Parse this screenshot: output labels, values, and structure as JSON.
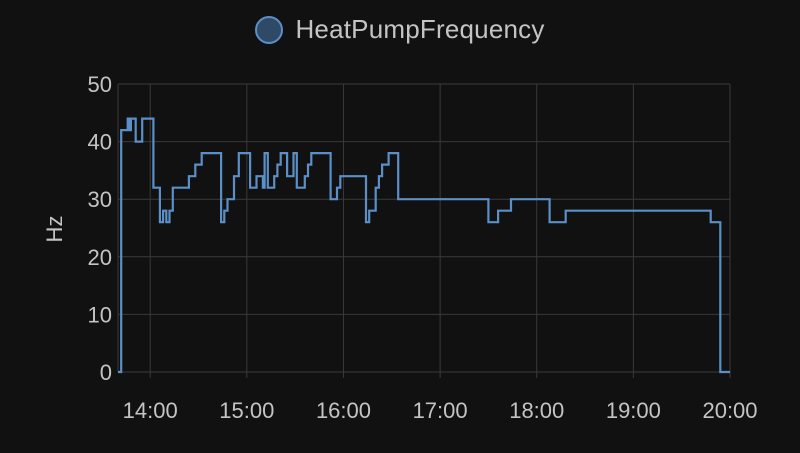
{
  "chart_data": {
    "type": "line",
    "step": true,
    "title": "",
    "xlabel": "",
    "ylabel": "Hz",
    "ylim": [
      0,
      50
    ],
    "yticks": [
      0,
      10,
      20,
      30,
      40,
      50
    ],
    "xlim": [
      "13:40",
      "20:00"
    ],
    "xticks": [
      "14:00",
      "15:00",
      "16:00",
      "17:00",
      "18:00",
      "19:00",
      "20:00"
    ],
    "grid": true,
    "legend_position": "top-center",
    "series": [
      {
        "name": "HeatPumpFrequency",
        "color": "#5b8fc7",
        "fill": "#2e4a66",
        "points": [
          [
            "13:40",
            0
          ],
          [
            "13:42",
            42
          ],
          [
            "13:46",
            44
          ],
          [
            "13:47",
            42
          ],
          [
            "13:48",
            44
          ],
          [
            "13:51",
            40
          ],
          [
            "13:55",
            44
          ],
          [
            "14:02",
            32
          ],
          [
            "14:06",
            26
          ],
          [
            "14:08",
            28
          ],
          [
            "14:10",
            26
          ],
          [
            "14:12",
            28
          ],
          [
            "14:14",
            32
          ],
          [
            "14:16",
            32
          ],
          [
            "14:24",
            34
          ],
          [
            "14:28",
            36
          ],
          [
            "14:32",
            38
          ],
          [
            "14:44",
            26
          ],
          [
            "14:46",
            28
          ],
          [
            "14:48",
            30
          ],
          [
            "14:52",
            34
          ],
          [
            "14:55",
            38
          ],
          [
            "15:02",
            32
          ],
          [
            "15:06",
            34
          ],
          [
            "15:10",
            32
          ],
          [
            "15:11",
            38
          ],
          [
            "15:13",
            32
          ],
          [
            "15:17",
            34
          ],
          [
            "15:19",
            36
          ],
          [
            "15:21",
            38
          ],
          [
            "15:25",
            34
          ],
          [
            "15:29",
            38
          ],
          [
            "15:31",
            32
          ],
          [
            "15:33",
            32
          ],
          [
            "15:36",
            34
          ],
          [
            "15:38",
            36
          ],
          [
            "15:40",
            38
          ],
          [
            "15:42",
            38
          ],
          [
            "15:52",
            30
          ],
          [
            "15:56",
            32
          ],
          [
            "15:58",
            34
          ],
          [
            "16:12",
            34
          ],
          [
            "16:14",
            26
          ],
          [
            "16:16",
            28
          ],
          [
            "16:20",
            32
          ],
          [
            "16:22",
            34
          ],
          [
            "16:24",
            36
          ],
          [
            "16:28",
            38
          ],
          [
            "16:34",
            30
          ],
          [
            "16:36",
            30
          ],
          [
            "17:30",
            26
          ],
          [
            "17:36",
            28
          ],
          [
            "17:44",
            30
          ],
          [
            "18:08",
            26
          ],
          [
            "18:18",
            28
          ],
          [
            "18:20",
            28
          ],
          [
            "19:48",
            26
          ],
          [
            "19:54",
            0
          ],
          [
            "20:00",
            0
          ]
        ]
      }
    ]
  }
}
